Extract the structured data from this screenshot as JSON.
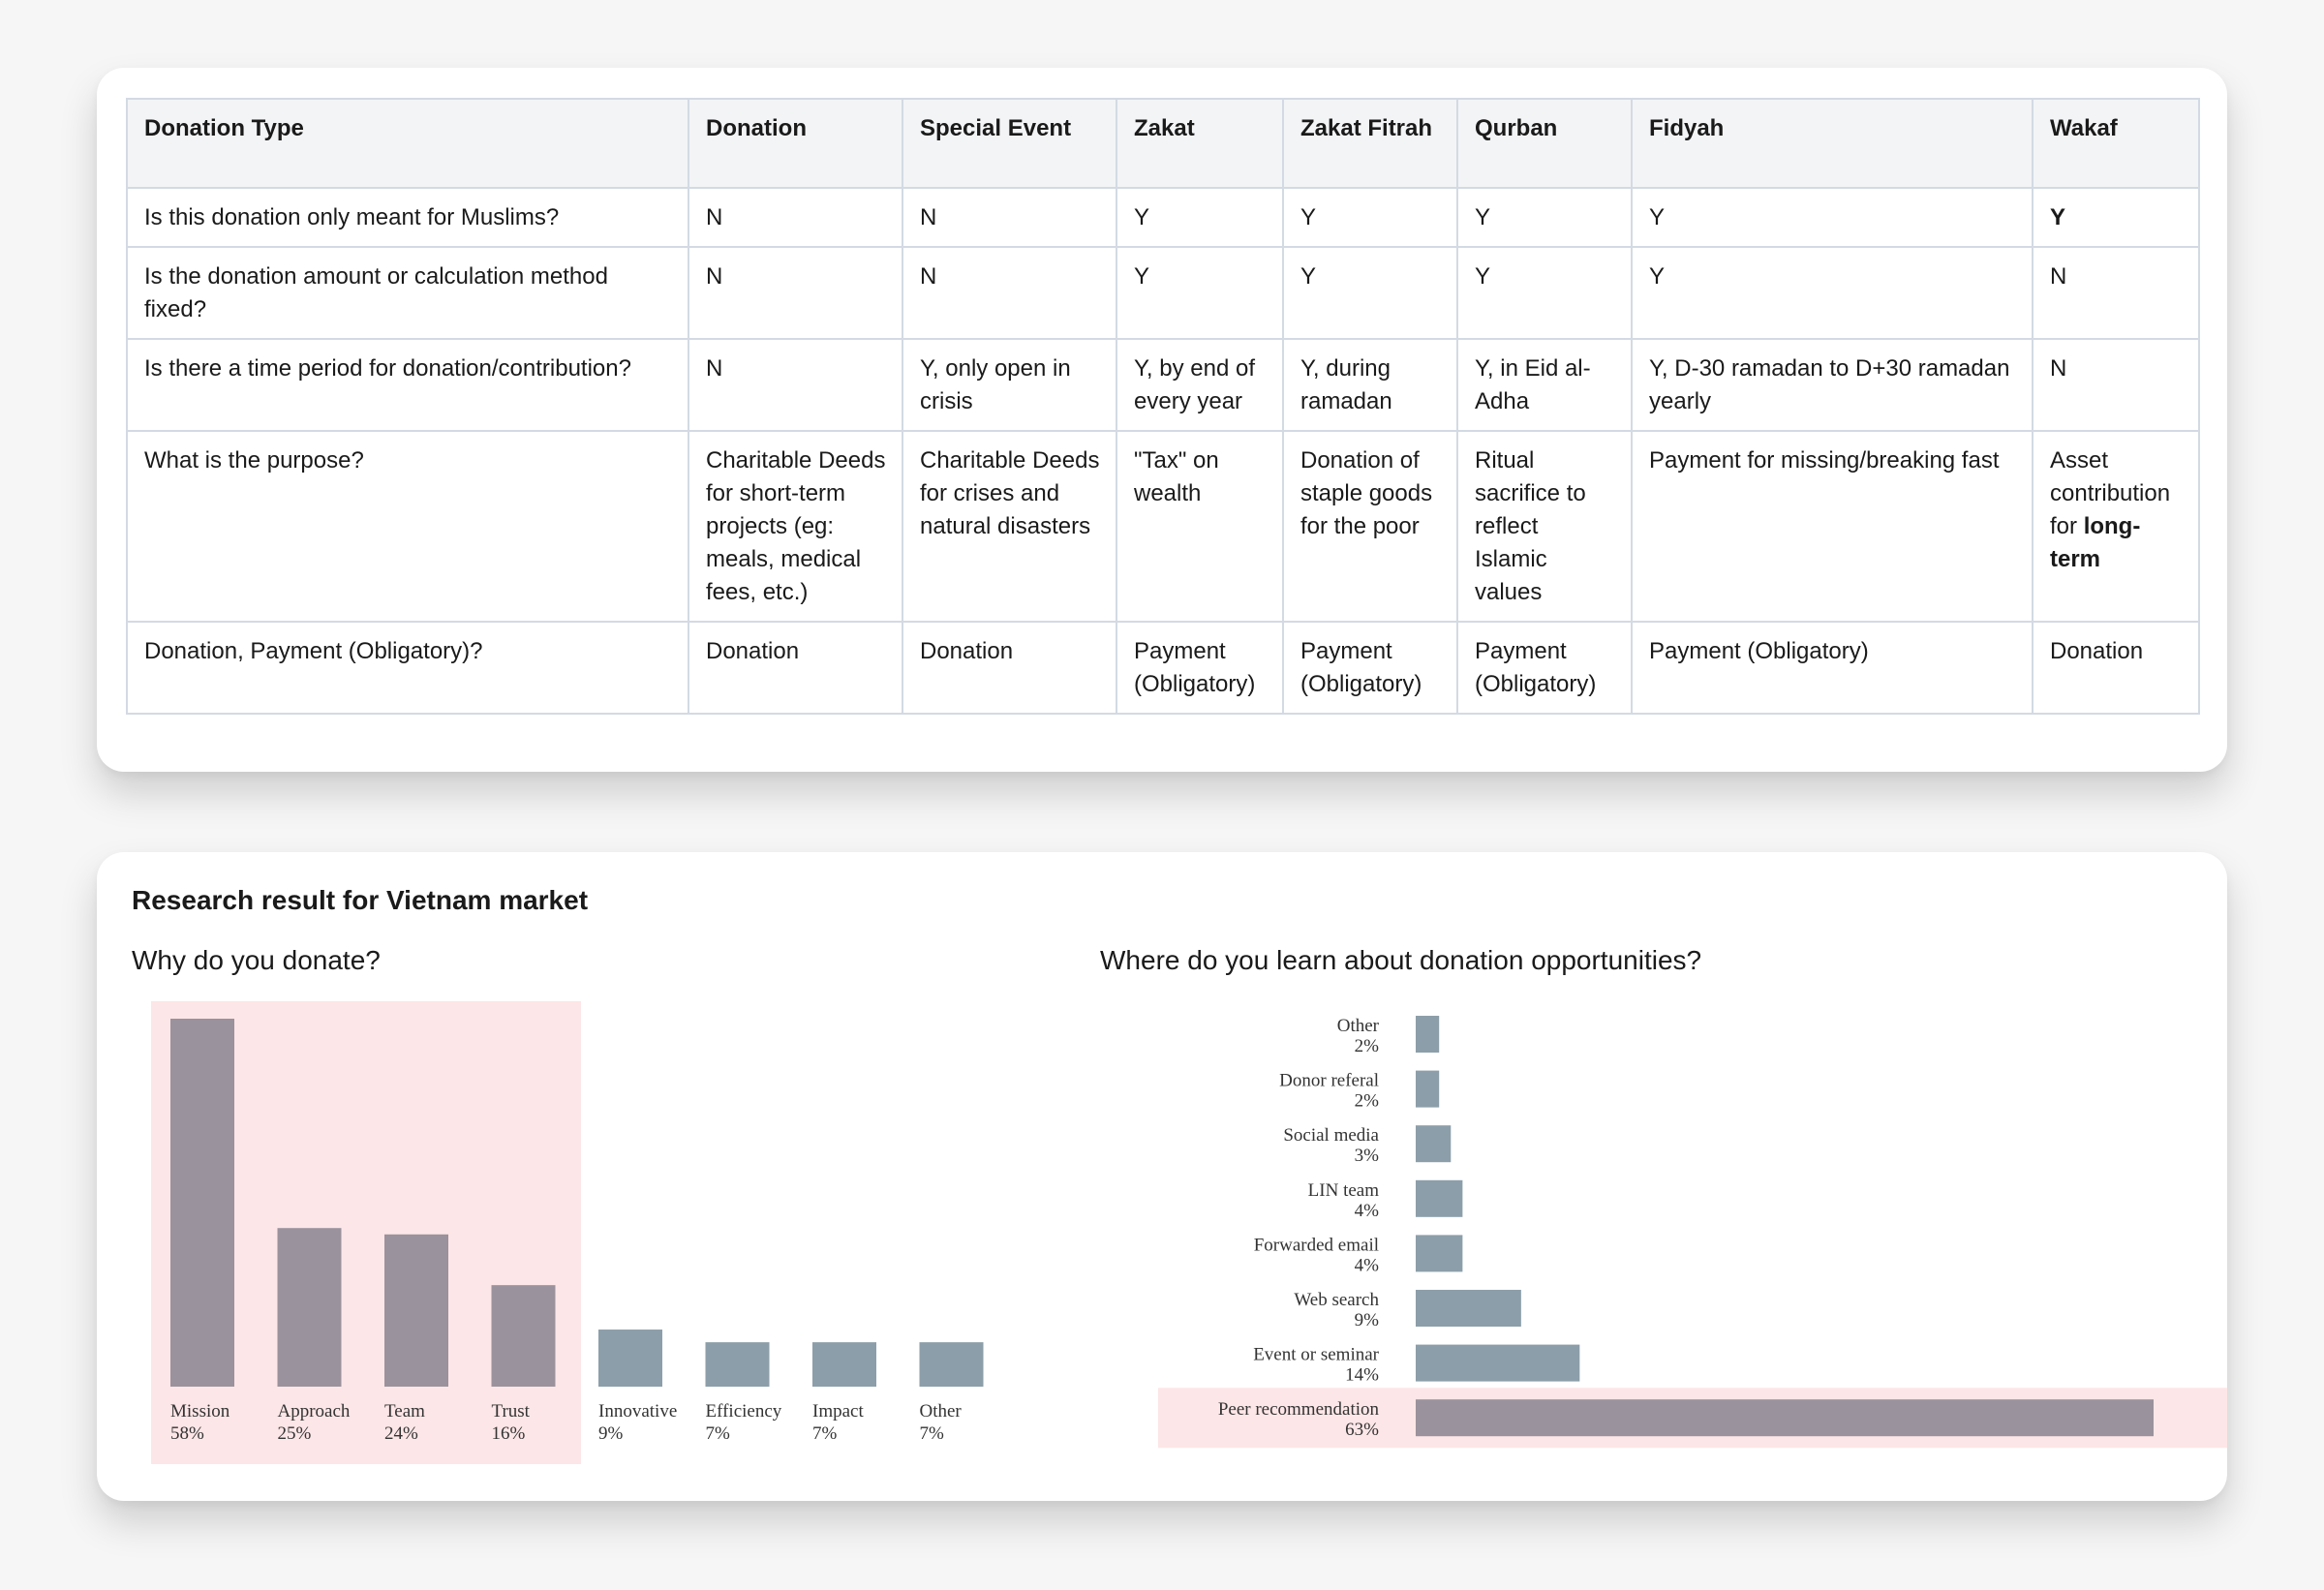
{
  "table": {
    "headers": [
      "Donation Type",
      "Donation",
      "Special Event",
      "Zakat",
      "Zakat Fitrah",
      "Qurban",
      "Fidyah",
      "Wakaf"
    ],
    "rows": [
      {
        "question": "Is this donation only meant for Muslims?",
        "cells": [
          "N",
          "N",
          "Y",
          "Y",
          "Y",
          "Y",
          "Y"
        ]
      },
      {
        "question": "Is the donation amount or calculation method fixed?",
        "cells": [
          "N",
          "N",
          "Y",
          "Y",
          "Y",
          "Y",
          "N"
        ]
      },
      {
        "question": "Is there a time period for donation/contribution?",
        "cells": [
          "N",
          "Y, only open in crisis",
          "Y, by end of every year",
          "Y, during ramadan",
          "Y, in Eid al-Adha",
          "Y, D-30 ramadan to D+30 ramadan yearly",
          "N"
        ]
      },
      {
        "question": "What is the purpose?",
        "cells": [
          "Charitable Deeds for short-term projects (eg: meals, medical fees, etc.)",
          "Charitable Deeds for crises and natural disasters",
          "\"Tax\" on wealth",
          "Donation of staple goods for the poor",
          "Ritual sacrifice to reflect Islamic values",
          "Payment for missing/breaking fast",
          "Asset contribution for long-term"
        ],
        "wakaf_bold": "long-term",
        "wakaf_prefix": "Asset contribution for "
      },
      {
        "question": "Donation, Payment (Obligatory)?",
        "cells": [
          "Donation",
          "Donation",
          "Payment (Obligatory)",
          "Payment (Obligatory)",
          "Payment (Obligatory)",
          "Payment (Obligatory)",
          "Donation"
        ]
      }
    ]
  },
  "research": {
    "title": "Research result for Vietnam market",
    "q1": "Why do you donate?",
    "q2": "Where do you learn about donation opportunities?"
  },
  "colors": {
    "highlight_bar": "#9a929c",
    "normal_bar": "#8c9ea9",
    "highlight_bg": "#fde6e7"
  },
  "chart_data": [
    {
      "type": "bar",
      "title": "Why do you donate?",
      "categories": [
        "Mission",
        "Approach",
        "Team",
        "Trust",
        "Innovative",
        "Efficiency",
        "Impact",
        "Other"
      ],
      "values": [
        58,
        25,
        24,
        16,
        9,
        7,
        7,
        7
      ],
      "labels": [
        "58%",
        "25%",
        "24%",
        "16%",
        "9%",
        "7%",
        "7%",
        "7%"
      ],
      "highlighted": [
        "Mission",
        "Approach",
        "Team",
        "Trust"
      ],
      "unit": "%"
    },
    {
      "type": "bar",
      "orientation": "horizontal",
      "title": "Where do you learn about donation opportunities?",
      "categories": [
        "Other",
        "Donor referal",
        "Social media",
        "LIN team",
        "Forwarded email",
        "Web search",
        "Event or seminar",
        "Peer recommendation"
      ],
      "values": [
        2,
        2,
        3,
        4,
        4,
        9,
        14,
        63
      ],
      "labels": [
        "2%",
        "2%",
        "3%",
        "4%",
        "4%",
        "9%",
        "14%",
        "63%"
      ],
      "highlighted": [
        "Peer recommendation"
      ],
      "unit": "%"
    }
  ]
}
